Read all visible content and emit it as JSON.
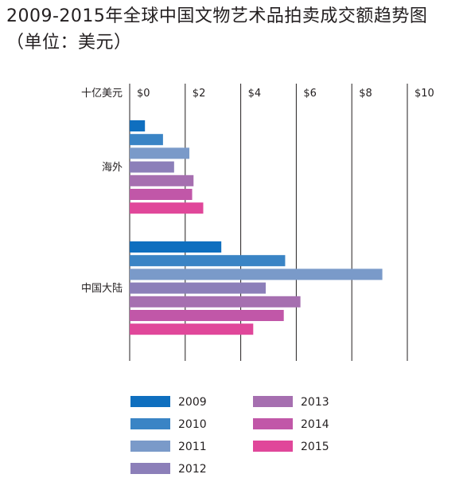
{
  "chart_data": {
    "type": "bar",
    "orientation": "horizontal",
    "title": [
      "2009-2015年全球中国文物艺术品拍卖成交额趋势图",
      "（单位：美元）"
    ],
    "unit_label": "十亿美元",
    "xlim": [
      0,
      10
    ],
    "xticks": [
      0,
      2,
      4,
      6,
      8,
      10
    ],
    "xtick_labels": [
      "$0",
      "$2",
      "$4",
      "$6",
      "$8",
      "$10"
    ],
    "grid": true,
    "legend_position": "bottom",
    "categories": [
      "海外",
      "中国大陆"
    ],
    "series": [
      {
        "name": "2009",
        "color": "#0f6fbf",
        "values": [
          0.55,
          3.3
        ]
      },
      {
        "name": "2010",
        "color": "#3a84c5",
        "values": [
          1.2,
          5.6
        ]
      },
      {
        "name": "2011",
        "color": "#7a9ac9",
        "values": [
          2.15,
          9.1
        ]
      },
      {
        "name": "2012",
        "color": "#8c7fb9",
        "values": [
          1.6,
          4.9
        ]
      },
      {
        "name": "2013",
        "color": "#a66fb0",
        "values": [
          2.3,
          6.15
        ]
      },
      {
        "name": "2014",
        "color": "#c157a8",
        "values": [
          2.25,
          5.55
        ]
      },
      {
        "name": "2015",
        "color": "#e0479a",
        "values": [
          2.65,
          4.45
        ]
      }
    ]
  }
}
